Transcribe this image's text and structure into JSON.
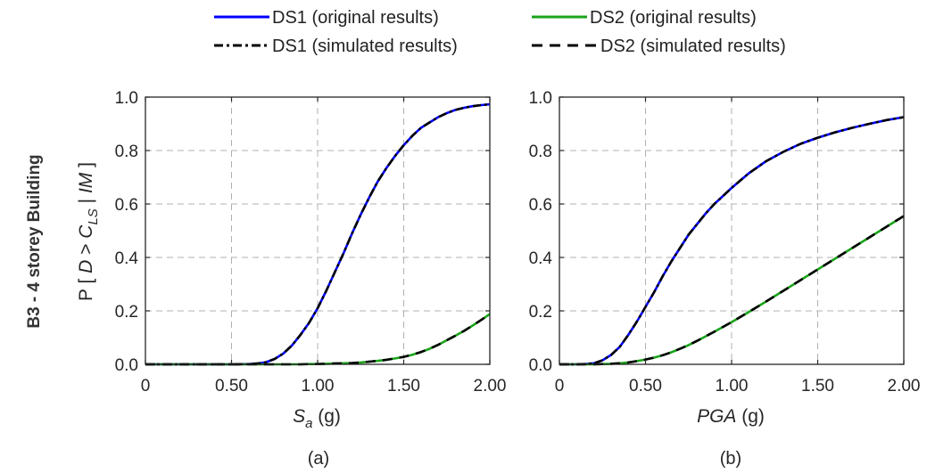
{
  "figure": {
    "row_label": "B3 - 4 storey Building",
    "ylabel": {
      "prefix": "P [ ",
      "var1": "D",
      "mid": " > ",
      "var2": "C",
      "sub": "LS",
      "bar": " | ",
      "var3": "IM",
      "suffix": " ]"
    }
  },
  "legend": [
    {
      "label": "DS1 (original results)",
      "color": "#0000ff",
      "dash": "solid"
    },
    {
      "label": "DS2 (original results)",
      "color": "#1aa31a",
      "dash": "solid"
    },
    {
      "label": "DS1 (simulated results)",
      "color": "#000000",
      "dash": "dashdot"
    },
    {
      "label": "DS2 (simulated results)",
      "color": "#000000",
      "dash": "dashed"
    }
  ],
  "colors": {
    "ds1_original": "#0000ff",
    "ds2_original": "#1aa31a",
    "simulated": "#000000",
    "grid": "#b0b0b0"
  },
  "chart_data": [
    {
      "type": "line",
      "sublabel": "(a)",
      "xlabel": {
        "main": "S",
        "sub": "a",
        "unit": " (g)"
      },
      "xlim": [
        0,
        2.0
      ],
      "ylim": [
        0,
        1.0
      ],
      "xticks": [
        "0",
        "0.50",
        "1.00",
        "1.50",
        "2.00"
      ],
      "yticks": [
        "0.0",
        "0.2",
        "0.4",
        "0.6",
        "0.8",
        "1.0"
      ],
      "grid": true,
      "x": [
        0,
        0.1,
        0.2,
        0.3,
        0.4,
        0.5,
        0.6,
        0.65,
        0.7,
        0.75,
        0.8,
        0.85,
        0.9,
        0.95,
        1.0,
        1.05,
        1.1,
        1.15,
        1.2,
        1.25,
        1.3,
        1.35,
        1.4,
        1.45,
        1.5,
        1.55,
        1.6,
        1.65,
        1.7,
        1.75,
        1.8,
        1.85,
        1.9,
        1.95,
        2.0
      ],
      "series": [
        {
          "name": "DS1 (original results)",
          "y": [
            0,
            0,
            0,
            0,
            0,
            0,
            0.001,
            0.003,
            0.008,
            0.02,
            0.04,
            0.07,
            0.11,
            0.155,
            0.21,
            0.275,
            0.345,
            0.415,
            0.49,
            0.56,
            0.625,
            0.685,
            0.735,
            0.78,
            0.82,
            0.855,
            0.885,
            0.905,
            0.925,
            0.94,
            0.952,
            0.96,
            0.966,
            0.97,
            0.973
          ]
        },
        {
          "name": "DS2 (original results)",
          "y": [
            0,
            0,
            0,
            0,
            0,
            0,
            0,
            0,
            0,
            0,
            0,
            0,
            0,
            0.001,
            0.001,
            0.002,
            0.003,
            0.004,
            0.005,
            0.007,
            0.01,
            0.013,
            0.017,
            0.022,
            0.028,
            0.036,
            0.046,
            0.058,
            0.073,
            0.09,
            0.107,
            0.125,
            0.145,
            0.166,
            0.188
          ]
        },
        {
          "name": "DS1 (simulated results)",
          "y": [
            0,
            0,
            0,
            0,
            0,
            0,
            0.001,
            0.003,
            0.008,
            0.02,
            0.04,
            0.07,
            0.11,
            0.155,
            0.21,
            0.275,
            0.345,
            0.415,
            0.49,
            0.56,
            0.625,
            0.685,
            0.735,
            0.78,
            0.82,
            0.855,
            0.885,
            0.905,
            0.925,
            0.94,
            0.952,
            0.96,
            0.966,
            0.97,
            0.973
          ]
        },
        {
          "name": "DS2 (simulated results)",
          "y": [
            0,
            0,
            0,
            0,
            0,
            0,
            0,
            0,
            0,
            0,
            0,
            0,
            0,
            0.001,
            0.001,
            0.002,
            0.003,
            0.004,
            0.005,
            0.007,
            0.01,
            0.013,
            0.017,
            0.022,
            0.028,
            0.036,
            0.046,
            0.058,
            0.073,
            0.09,
            0.107,
            0.125,
            0.145,
            0.166,
            0.188
          ]
        }
      ]
    },
    {
      "type": "line",
      "sublabel": "(b)",
      "xlabel": {
        "main": "PGA",
        "sub": "",
        "unit": "  (g)"
      },
      "xlim": [
        0,
        2.0
      ],
      "ylim": [
        0,
        1.0
      ],
      "xticks": [
        "0",
        "0.50",
        "1.00",
        "1.50",
        "2.00"
      ],
      "yticks": [
        "0.0",
        "0.2",
        "0.4",
        "0.6",
        "0.8",
        "1.0"
      ],
      "grid": true,
      "x": [
        0,
        0.1,
        0.15,
        0.2,
        0.25,
        0.3,
        0.35,
        0.4,
        0.45,
        0.5,
        0.55,
        0.6,
        0.65,
        0.7,
        0.75,
        0.8,
        0.85,
        0.9,
        0.95,
        1.0,
        1.1,
        1.2,
        1.3,
        1.4,
        1.5,
        1.6,
        1.7,
        1.8,
        1.9,
        2.0
      ],
      "series": [
        {
          "name": "DS1 (original results)",
          "y": [
            0,
            0,
            0.001,
            0.004,
            0.015,
            0.035,
            0.065,
            0.11,
            0.16,
            0.215,
            0.27,
            0.33,
            0.385,
            0.435,
            0.485,
            0.525,
            0.565,
            0.6,
            0.63,
            0.66,
            0.715,
            0.76,
            0.795,
            0.825,
            0.848,
            0.868,
            0.885,
            0.9,
            0.914,
            0.925
          ]
        },
        {
          "name": "DS2 (original results)",
          "y": [
            0,
            0,
            0,
            0,
            0.001,
            0.002,
            0.004,
            0.007,
            0.012,
            0.018,
            0.025,
            0.034,
            0.045,
            0.058,
            0.072,
            0.088,
            0.105,
            0.122,
            0.14,
            0.158,
            0.196,
            0.235,
            0.275,
            0.315,
            0.355,
            0.395,
            0.435,
            0.475,
            0.515,
            0.555
          ]
        },
        {
          "name": "DS1 (simulated results)",
          "y": [
            0,
            0,
            0.001,
            0.004,
            0.015,
            0.035,
            0.065,
            0.11,
            0.16,
            0.215,
            0.27,
            0.33,
            0.385,
            0.435,
            0.485,
            0.525,
            0.565,
            0.6,
            0.63,
            0.66,
            0.715,
            0.76,
            0.795,
            0.825,
            0.848,
            0.868,
            0.885,
            0.9,
            0.914,
            0.925
          ]
        },
        {
          "name": "DS2 (simulated results)",
          "y": [
            0,
            0,
            0,
            0,
            0.001,
            0.002,
            0.004,
            0.007,
            0.012,
            0.018,
            0.025,
            0.034,
            0.045,
            0.058,
            0.072,
            0.088,
            0.105,
            0.122,
            0.14,
            0.158,
            0.196,
            0.235,
            0.275,
            0.315,
            0.355,
            0.395,
            0.435,
            0.475,
            0.515,
            0.555
          ]
        }
      ]
    }
  ]
}
